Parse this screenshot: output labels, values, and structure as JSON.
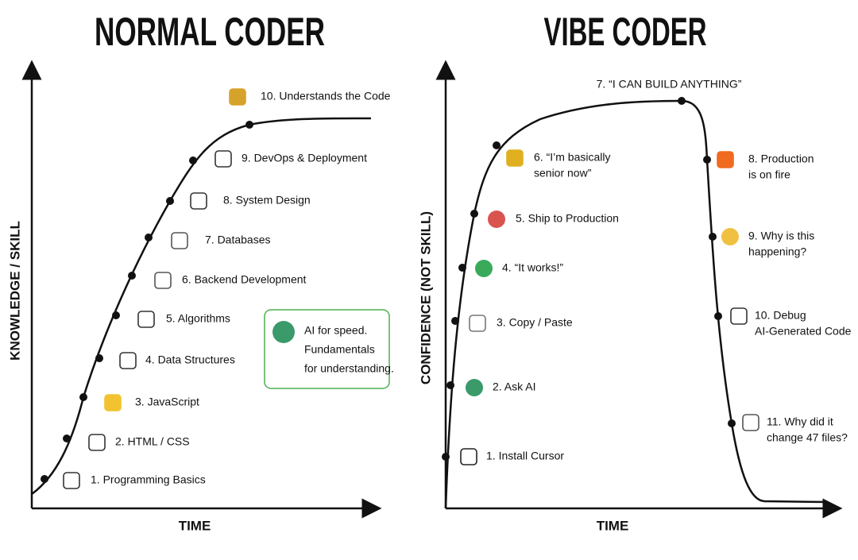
{
  "left": {
    "title": "NORMAL CODER",
    "y_axis": "KNOWLEDGE / SKILL",
    "x_axis": "TIME",
    "items": [
      {
        "label": [
          "1. Programming Basics"
        ]
      },
      {
        "label": [
          "2. HTML / CSS"
        ]
      },
      {
        "label": [
          "3. JavaScript"
        ]
      },
      {
        "label": [
          "4. Data Structures"
        ]
      },
      {
        "label": [
          "5. Algorithms"
        ]
      },
      {
        "label": [
          "6. Backend Development"
        ]
      },
      {
        "label": [
          "7. Databases"
        ]
      },
      {
        "label": [
          "8. System Design"
        ]
      },
      {
        "label": [
          "9. DevOps & Deployment"
        ]
      },
      {
        "label": [
          "10. Understands the Code"
        ]
      }
    ],
    "note": [
      "AI for speed.",
      "Fundamentals",
      "for understanding."
    ]
  },
  "right": {
    "title": "VIBE CODER",
    "y_axis": "CONFIDENCE (NOT SKILL)",
    "x_axis": "TIME",
    "items": [
      {
        "label": [
          "1. Install Cursor"
        ]
      },
      {
        "label": [
          "2. Ask AI"
        ]
      },
      {
        "label": [
          "3. Copy / Paste"
        ]
      },
      {
        "label": [
          "4. “It works!”"
        ]
      },
      {
        "label": [
          "5. Ship to Production"
        ]
      },
      {
        "label": [
          "6. “I’m basically",
          "senior now”"
        ]
      },
      {
        "label": [
          "7. “I CAN BUILD ANYTHING”"
        ]
      },
      {
        "label": [
          "8. Production",
          "is on fire"
        ]
      },
      {
        "label": [
          "9. Why is this",
          "happening?"
        ]
      },
      {
        "label": [
          "10. Debug",
          "AI-Generated Code"
        ]
      },
      {
        "label": [
          "11. Why did it",
          "change 47 files?"
        ]
      }
    ]
  }
}
